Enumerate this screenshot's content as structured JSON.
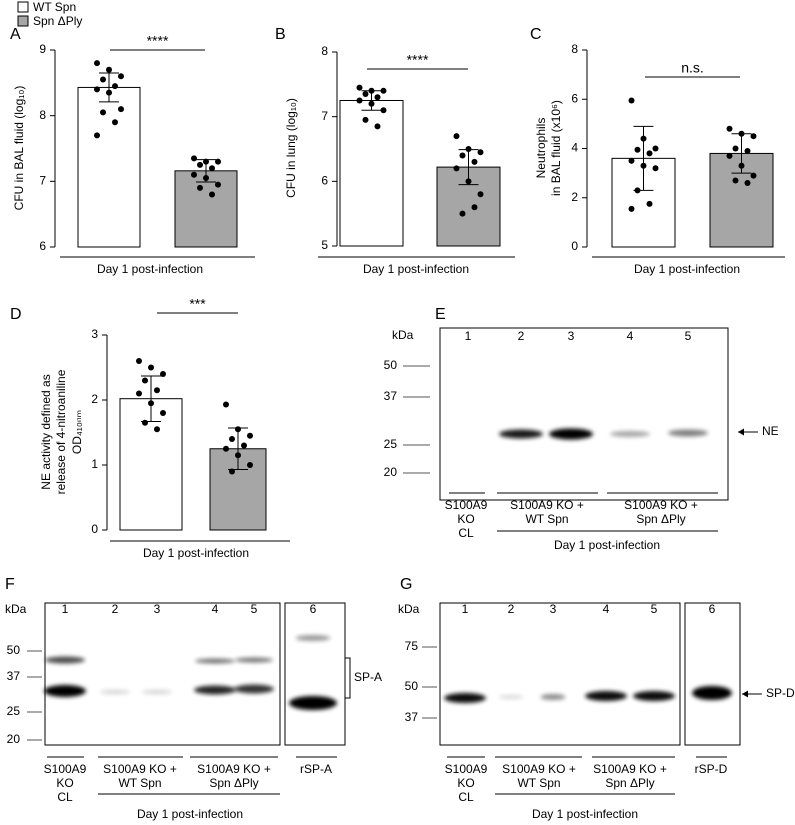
{
  "legend": [
    {
      "name": "WT Spn",
      "color": "#ffffff"
    },
    {
      "name": "Spn ΔPly",
      "color": "#a6a6a6"
    }
  ],
  "chart_data": [
    {
      "type": "bar",
      "panel": "A",
      "ylabel": [
        "CFU in BAL fluid (log₁₀)"
      ],
      "xlabel": "Day 1 post-infection",
      "significance": "****",
      "categories": [
        null,
        null
      ],
      "values": [
        8.43,
        7.16
      ],
      "errors": [
        0.22,
        0.17
      ],
      "points": [
        [
          8.8,
          8.7,
          8.6,
          8.55,
          8.45,
          8.4,
          8.35,
          8.1,
          8.05,
          7.9,
          7.7
        ],
        [
          7.35,
          7.3,
          7.3,
          7.25,
          7.2,
          7.1,
          7.05,
          6.95,
          6.9,
          6.8
        ]
      ],
      "ylim": [
        6,
        9
      ],
      "yticks": [
        6,
        7,
        8,
        9
      ]
    },
    {
      "type": "bar",
      "panel": "B",
      "ylabel": [
        "CFU in lung (log₁₀)"
      ],
      "xlabel": "Day 1 post-infection",
      "significance": "****",
      "categories": [
        null,
        null
      ],
      "values": [
        7.25,
        6.22
      ],
      "errors": [
        0.15,
        0.27
      ],
      "points": [
        [
          7.45,
          7.4,
          7.4,
          7.35,
          7.3,
          7.25,
          7.2,
          7.1,
          6.95,
          6.85
        ],
        [
          6.7,
          6.5,
          6.45,
          6.4,
          6.3,
          6.2,
          6.0,
          5.8,
          5.5,
          5.6
        ]
      ],
      "ylim": [
        5,
        8
      ],
      "yticks": [
        5,
        6,
        7,
        8
      ]
    },
    {
      "type": "bar",
      "panel": "C",
      "ylabel": [
        "Neutrophils",
        "in BAL fluid (x10⁶)"
      ],
      "xlabel": "Day 1 post-infection",
      "significance": "n.s.",
      "categories": [
        null,
        null
      ],
      "values": [
        3.6,
        3.8
      ],
      "errors": [
        1.3,
        0.8
      ],
      "points": [
        [
          5.95,
          4.4,
          4.0,
          3.95,
          3.8,
          3.5,
          3.3,
          3.2,
          2.3,
          1.75,
          1.55
        ],
        [
          4.8,
          4.6,
          4.5,
          4.0,
          3.9,
          3.7,
          3.3,
          2.9,
          2.7,
          2.6
        ]
      ],
      "ylim": [
        0,
        8
      ],
      "yticks": [
        0,
        2,
        4,
        6,
        8
      ]
    },
    {
      "type": "bar",
      "panel": "D",
      "ylabel": [
        "NE activity defined as",
        "release of 4-nitroaniline",
        "OD₄₁₀ₙₘ"
      ],
      "xlabel": "Day 1 post-infection",
      "significance": "***",
      "categories": [
        null,
        null
      ],
      "values": [
        2.02,
        1.25
      ],
      "errors": [
        0.35,
        0.32
      ],
      "points": [
        [
          2.6,
          2.5,
          2.4,
          2.3,
          2.15,
          2.1,
          1.95,
          1.8,
          1.65,
          1.55
        ],
        [
          1.93,
          1.55,
          1.45,
          1.4,
          1.3,
          1.25,
          1.15,
          1.0,
          0.9
        ]
      ],
      "ylim": [
        0,
        3
      ],
      "yticks": [
        0,
        1,
        2,
        3
      ]
    }
  ],
  "blots": [
    {
      "panel": "E",
      "unit": "kDa",
      "lanes": [
        1,
        2,
        3,
        4,
        5
      ],
      "markers": [
        50,
        37,
        25,
        20
      ],
      "band_label": "NE",
      "groups": [
        [
          "S100A9",
          "KO",
          "CL"
        ],
        [
          "S100A9 KO +",
          "WT Spn"
        ],
        [
          "S100A9 KO +",
          "Spn ΔPly"
        ]
      ],
      "timepoint": "Day 1 post-infection"
    },
    {
      "panel": "F",
      "unit": "kDa",
      "lanes": [
        1,
        2,
        3,
        4,
        5,
        6
      ],
      "markers": [
        50,
        37,
        25,
        20
      ],
      "band_label": "SP-A",
      "groups": [
        [
          "S100A9",
          "KO",
          "CL"
        ],
        [
          "S100A9 KO +",
          "WT Spn"
        ],
        [
          "S100A9 KO +",
          "Spn ΔPly"
        ],
        [
          "rSP-A"
        ]
      ],
      "timepoint": "Day 1 post-infection"
    },
    {
      "panel": "G",
      "unit": "kDa",
      "lanes": [
        1,
        2,
        3,
        4,
        5,
        6
      ],
      "markers": [
        75,
        50,
        37
      ],
      "band_label": "SP-D",
      "groups": [
        [
          "S100A9",
          "KO",
          "CL"
        ],
        [
          "S100A9 KO +",
          "WT Spn"
        ],
        [
          "S100A9 KO +",
          "Spn ΔPly"
        ],
        [
          "rSP-D"
        ]
      ],
      "timepoint": "Day 1 post-infection"
    }
  ]
}
